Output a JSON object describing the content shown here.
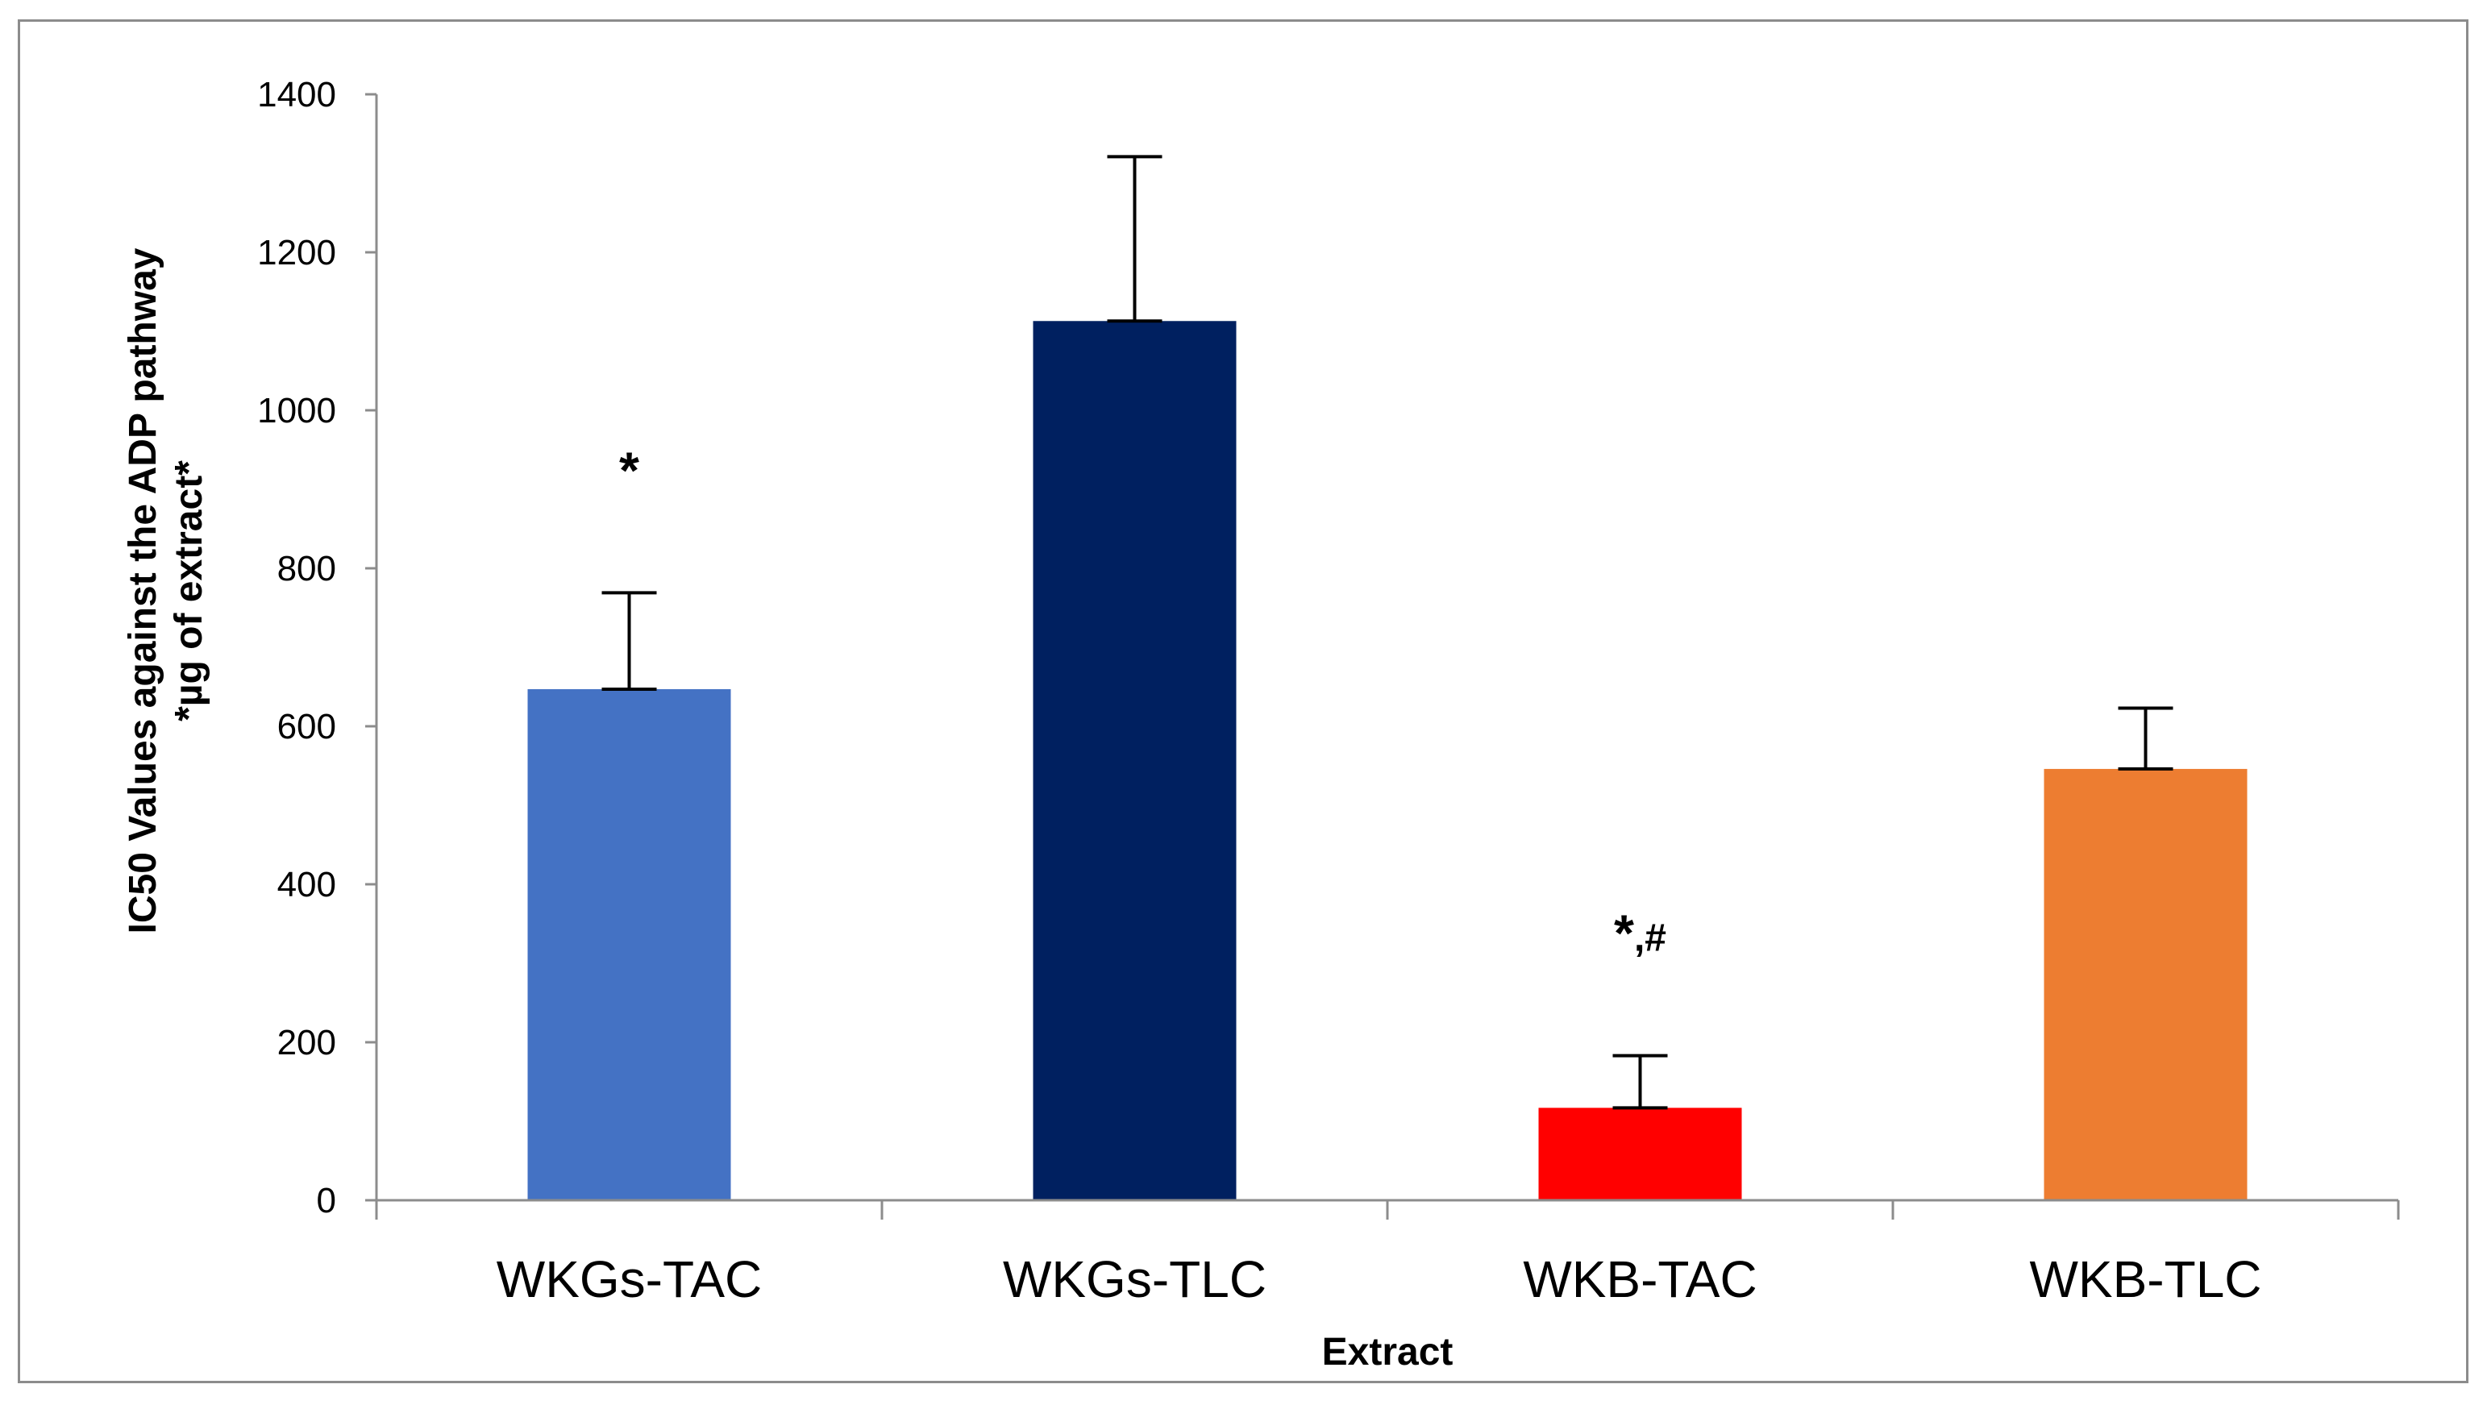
{
  "chart_data": {
    "type": "bar",
    "title": "",
    "categories": [
      "WKGs-TAC",
      "WKGs-TLC",
      "WKB-TAC",
      "WKB-TLC"
    ],
    "values": [
      647,
      1113,
      117,
      546
    ],
    "errors": [
      122,
      208,
      66,
      77
    ],
    "colors": [
      "#4472C4",
      "#002060",
      "#FF0000",
      "#ED7D31"
    ],
    "annotations": [
      "*",
      "",
      "*,#",
      ""
    ],
    "xlabel": "Extract",
    "ylabel_line1": "IC50 Values against the ADP pathway",
    "ylabel_line2": "*µg of extract*",
    "ylim": [
      0,
      1400
    ],
    "yticks": [
      0,
      200,
      400,
      600,
      800,
      1000,
      1200,
      1400
    ],
    "grid": false
  }
}
